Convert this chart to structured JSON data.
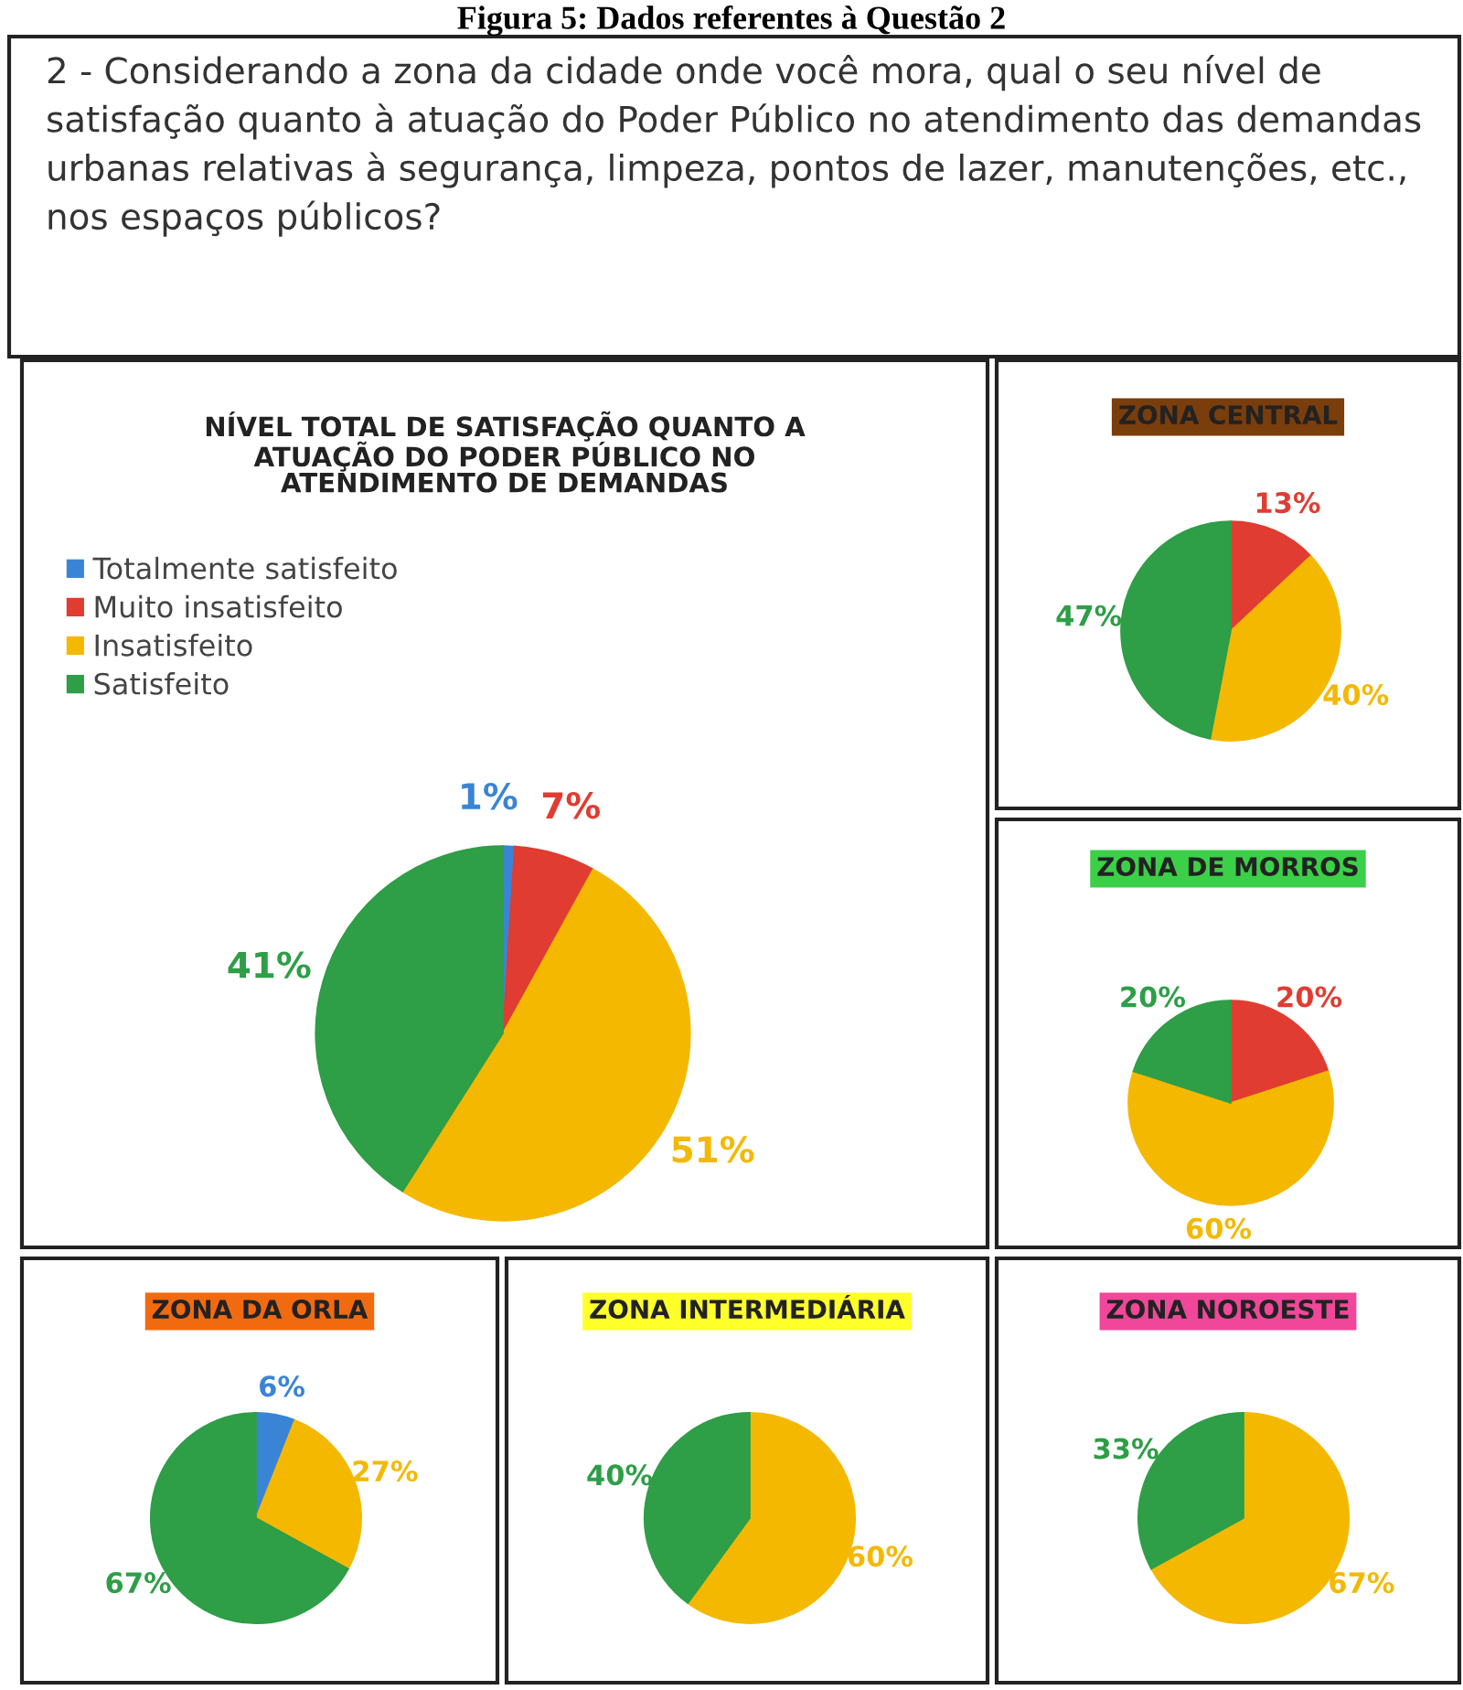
{
  "chart_data": [
    {
      "type": "pie",
      "title": "NÍVEL TOTAL DE SATISFAÇÃO QUANTO A\nATUAÇÃO DO PODER PÚBLICO NO\nATENDIMENTO DE DEMANDAS",
      "annotations": [
        "Figura 5: Dados referentes à Questão 2",
        "2 - Considerando a zona da cidade onde você mora, qual o seu nível de satisfação quanto à atuação do Poder Público no atendimento das demandas urbanas relativas à segurança, limpeza, pontos de lazer, manutenções, etc., nos espaços públicos?"
      ],
      "categories": [
        "Totalmente satisfeito",
        "Muito insatisfeito",
        "Insatisfeito",
        "Satisfeito"
      ],
      "values": [
        1,
        7,
        51,
        41
      ],
      "colors": [
        "#3a84d6",
        "#e03c31",
        "#f5b800",
        "#2e9e47"
      ],
      "value_labels": [
        "1%",
        "7%",
        "51%",
        "41%"
      ],
      "legend": "top left"
    },
    {
      "type": "pie",
      "title": "ZONA CENTRAL",
      "categories": [
        null,
        null,
        null
      ],
      "values": [
        13,
        40,
        47
      ],
      "colors": [
        "#e03c31",
        "#f5b800",
        "#2e9e47"
      ],
      "value_labels": [
        "13%",
        "40%",
        "47%"
      ]
    },
    {
      "type": "pie",
      "title": "ZONA DE MORROS",
      "categories": [
        null,
        null,
        null
      ],
      "values": [
        20,
        60,
        20
      ],
      "colors": [
        "#e03c31",
        "#f5b800",
        "#2e9e47"
      ],
      "value_labels": [
        "20%",
        "60%",
        "20%"
      ]
    },
    {
      "type": "pie",
      "title": "ZONA DA ORLA",
      "categories": [
        null,
        null,
        null
      ],
      "values": [
        6,
        27,
        67
      ],
      "colors": [
        "#3a84d6",
        "#f5b800",
        "#2e9e47"
      ],
      "value_labels": [
        "6%",
        "27%",
        "67%"
      ]
    },
    {
      "type": "pie",
      "title": "ZONA INTERMEDIÁRIA",
      "categories": [
        null,
        null
      ],
      "values": [
        60,
        40
      ],
      "colors": [
        "#f5b800",
        "#2e9e47"
      ],
      "value_labels": [
        "60%",
        "40%"
      ]
    },
    {
      "type": "pie",
      "title": "ZONA NOROESTE",
      "categories": [
        null,
        null
      ],
      "values": [
        67,
        33
      ],
      "colors": [
        "#f5b800",
        "#2e9e47"
      ],
      "value_labels": [
        "67%",
        "33%"
      ]
    }
  ]
}
